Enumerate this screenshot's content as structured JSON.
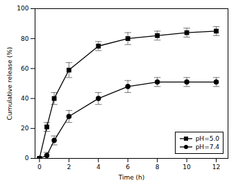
{
  "chart_data": {
    "type": "line",
    "xlabel": "Time (h)",
    "ylabel": "Cumulative release (%)",
    "x": [
      0,
      0.5,
      1,
      2,
      4,
      6,
      8,
      10,
      12
    ],
    "series": [
      {
        "name": "pH=5.0",
        "color": "#000000",
        "marker": "square",
        "values": [
          0,
          21,
          40,
          59,
          75,
          80,
          82,
          84,
          85
        ],
        "yerr": [
          0,
          3,
          4,
          5,
          3,
          4,
          3,
          3,
          3
        ]
      },
      {
        "name": "pH=7.4",
        "color": "#000000",
        "marker": "circle",
        "values": [
          0,
          2,
          12,
          28,
          40,
          48,
          51,
          51,
          51
        ],
        "yerr": [
          0,
          2,
          3,
          4,
          4,
          4,
          3,
          3,
          3
        ]
      }
    ],
    "xlim": [
      -0.3,
      12.8
    ],
    "ylim": [
      0,
      100
    ],
    "xticks": [
      0,
      2,
      4,
      6,
      8,
      10,
      12
    ],
    "yticks": [
      0,
      20,
      40,
      60,
      80,
      100
    ],
    "legend": "lower right"
  }
}
